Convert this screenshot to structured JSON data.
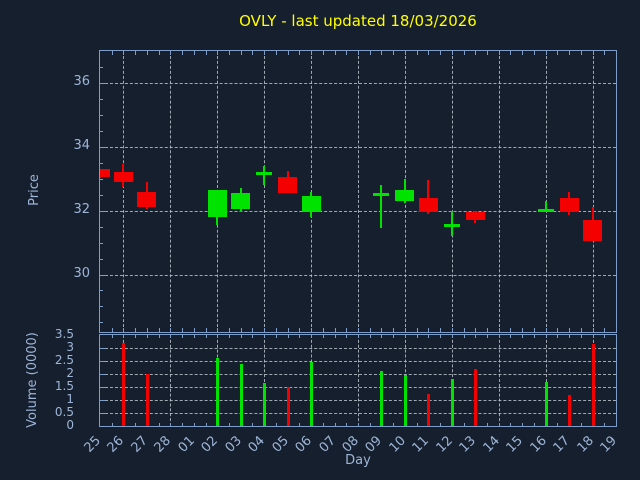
{
  "title": "OVLY - last updated 18/03/2026",
  "labels": {
    "xlabel": "Day",
    "price_ylabel": "Price",
    "volume_ylabel": "Volume (0000)"
  },
  "colors": {
    "background": "#161f2e",
    "axis": "#7e9dc8",
    "tick_label": "#9db5d6",
    "grid": "#b9c0c9",
    "title": "#ffff00",
    "up": "#00e200",
    "down": "#f40000"
  },
  "chart_data": {
    "type": "candlestick",
    "title": "OVLY - last updated 18/03/2026",
    "xlabel": "Day",
    "price_ylabel": "Price",
    "volume_ylabel": "Volume (0000)",
    "categories": [
      "25",
      "26",
      "27",
      "28",
      "01",
      "02",
      "03",
      "04",
      "05",
      "06",
      "07",
      "08",
      "09",
      "10",
      "11",
      "12",
      "13",
      "14",
      "15",
      "16",
      "17",
      "18",
      "19"
    ],
    "price_axis": {
      "min": 28.2,
      "max": 37.0,
      "tick_labels": [
        "36",
        "34",
        "32",
        "30"
      ],
      "tick_values": [
        36,
        34,
        32,
        30
      ]
    },
    "volume_axis": {
      "min": 0,
      "max": 3.5,
      "tick_labels": [
        "3.5",
        "3",
        "2.5",
        "2",
        "1.5",
        "1",
        "0.5",
        "0"
      ],
      "tick_values": [
        3.5,
        3,
        2.5,
        2,
        1.5,
        1,
        0.5,
        0
      ],
      "unit_multiplier": "0000"
    },
    "grid": {
      "vertical_day_indices": [
        1,
        3,
        5,
        7,
        9,
        11,
        13,
        15,
        17,
        19,
        21
      ],
      "horizontal_price": [
        36,
        34,
        32,
        30
      ],
      "horizontal_volume": [
        3,
        2.5,
        2,
        1.5,
        1,
        0.5
      ]
    },
    "candles": [
      {
        "day": "25",
        "index": 0,
        "open": 33.3,
        "high": 33.32,
        "low": 33.02,
        "close": 33.05,
        "volume": 0
      },
      {
        "day": "26",
        "index": 1,
        "open": 33.2,
        "high": 33.45,
        "low": 32.75,
        "close": 32.9,
        "volume": 3.2
      },
      {
        "day": "27",
        "index": 2,
        "open": 32.6,
        "high": 32.9,
        "low": 32.05,
        "close": 32.1,
        "volume": 2.0
      },
      {
        "day": "02",
        "index": 5,
        "open": 31.8,
        "high": 32.65,
        "low": 31.55,
        "close": 32.65,
        "volume": 2.6
      },
      {
        "day": "03",
        "index": 6,
        "open": 32.05,
        "high": 32.7,
        "low": 31.95,
        "close": 32.55,
        "volume": 2.4
      },
      {
        "day": "04",
        "index": 7,
        "open": 33.15,
        "high": 33.4,
        "low": 32.8,
        "close": 33.18,
        "volume": 1.65
      },
      {
        "day": "05",
        "index": 8,
        "open": 33.05,
        "high": 33.25,
        "low": 32.55,
        "close": 32.55,
        "volume": 1.5
      },
      {
        "day": "06",
        "index": 9,
        "open": 31.95,
        "high": 32.6,
        "low": 31.8,
        "close": 32.45,
        "volume": 2.45
      },
      {
        "day": "09",
        "index": 12,
        "open": 32.5,
        "high": 32.8,
        "low": 31.45,
        "close": 32.53,
        "volume": 2.1
      },
      {
        "day": "10",
        "index": 13,
        "open": 32.3,
        "high": 33.0,
        "low": 32.25,
        "close": 32.65,
        "volume": 1.95
      },
      {
        "day": "11",
        "index": 14,
        "open": 32.4,
        "high": 32.95,
        "low": 31.9,
        "close": 31.95,
        "volume": 1.25
      },
      {
        "day": "12",
        "index": 15,
        "open": 31.55,
        "high": 32.0,
        "low": 31.2,
        "close": 31.58,
        "volume": 1.8
      },
      {
        "day": "13",
        "index": 16,
        "open": 31.95,
        "high": 32.0,
        "low": 31.6,
        "close": 31.7,
        "volume": 2.2
      },
      {
        "day": "16",
        "index": 19,
        "open": 32.0,
        "high": 32.3,
        "low": 31.98,
        "close": 32.02,
        "volume": 1.7
      },
      {
        "day": "17",
        "index": 20,
        "open": 32.4,
        "high": 32.6,
        "low": 31.85,
        "close": 31.95,
        "volume": 1.2
      },
      {
        "day": "18",
        "index": 21,
        "open": 31.7,
        "high": 32.1,
        "low": 31.05,
        "close": 31.05,
        "volume": 3.15
      }
    ]
  }
}
